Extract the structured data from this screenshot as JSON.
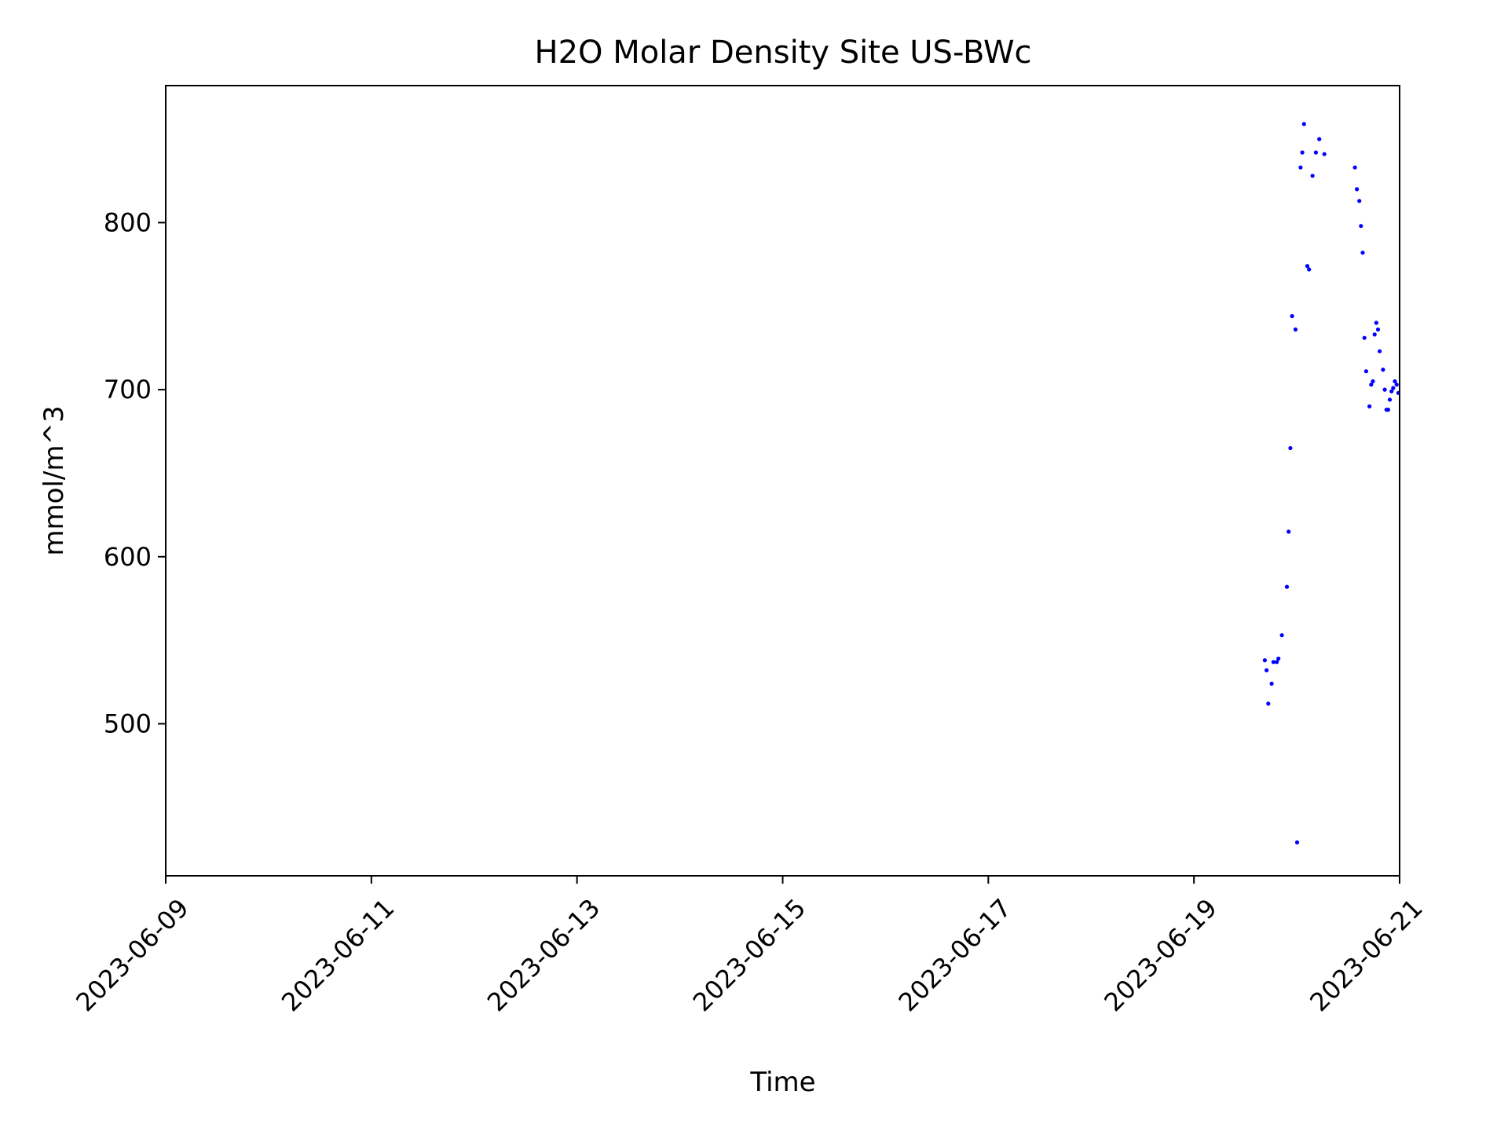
{
  "chart_data": {
    "type": "scatter",
    "title": "H2O Molar Density Site US-BWc",
    "xlabel": "Time",
    "ylabel": "mmol/m^3",
    "xlim": [
      "2023-06-09T00:00",
      "2023-06-21T00:00"
    ],
    "ylim": [
      409,
      882
    ],
    "x_ticks": [
      "2023-06-09",
      "2023-06-11",
      "2023-06-13",
      "2023-06-15",
      "2023-06-17",
      "2023-06-19",
      "2023-06-21"
    ],
    "y_ticks": [
      500,
      600,
      700,
      800
    ],
    "grid": false,
    "legend": "none",
    "marker_color": "#0000ff",
    "series": [
      {
        "x": [
          "2023-06-19T16:33",
          "2023-06-19T16:57",
          "2023-06-19T17:21",
          "2023-06-19T18:08",
          "2023-06-19T18:32",
          "2023-06-19T19:20",
          "2023-06-19T19:43",
          "2023-06-19T20:31",
          "2023-06-19T21:42",
          "2023-06-19T22:06",
          "2023-06-19T22:30",
          "2023-06-19T22:54",
          "2023-06-19T23:42",
          "2023-06-20T00:05",
          "2023-06-20T00:53",
          "2023-06-20T01:17",
          "2023-06-20T01:41",
          "2023-06-20T02:28",
          "2023-06-20T02:52",
          "2023-06-20T03:40",
          "2023-06-20T04:27",
          "2023-06-20T05:15",
          "2023-06-20T06:26",
          "2023-06-20T13:34",
          "2023-06-20T14:02",
          "2023-06-20T14:36",
          "2023-06-20T14:59",
          "2023-06-20T15:23",
          "2023-06-20T15:47",
          "2023-06-20T16:11",
          "2023-06-20T16:58",
          "2023-06-20T17:22",
          "2023-06-20T17:46",
          "2023-06-20T18:10",
          "2023-06-20T18:33",
          "2023-06-20T18:57",
          "2023-06-20T19:21",
          "2023-06-20T20:08",
          "2023-06-20T20:32",
          "2023-06-20T20:56",
          "2023-06-20T21:19",
          "2023-06-20T21:43",
          "2023-06-20T22:07",
          "2023-06-20T22:30",
          "2023-06-20T22:54",
          "2023-06-20T23:18",
          "2023-06-20T23:42"
        ],
        "y": [
          538,
          532,
          512,
          524,
          537,
          537,
          539,
          553,
          582,
          615,
          665,
          744,
          736,
          429,
          833,
          842,
          859,
          774,
          772,
          828,
          842,
          850,
          841,
          833,
          820,
          813,
          798,
          782,
          731,
          711,
          690,
          703,
          705,
          733,
          740,
          736,
          723,
          712,
          700,
          688,
          688,
          694,
          699,
          701,
          705,
          703,
          698
        ]
      }
    ]
  }
}
